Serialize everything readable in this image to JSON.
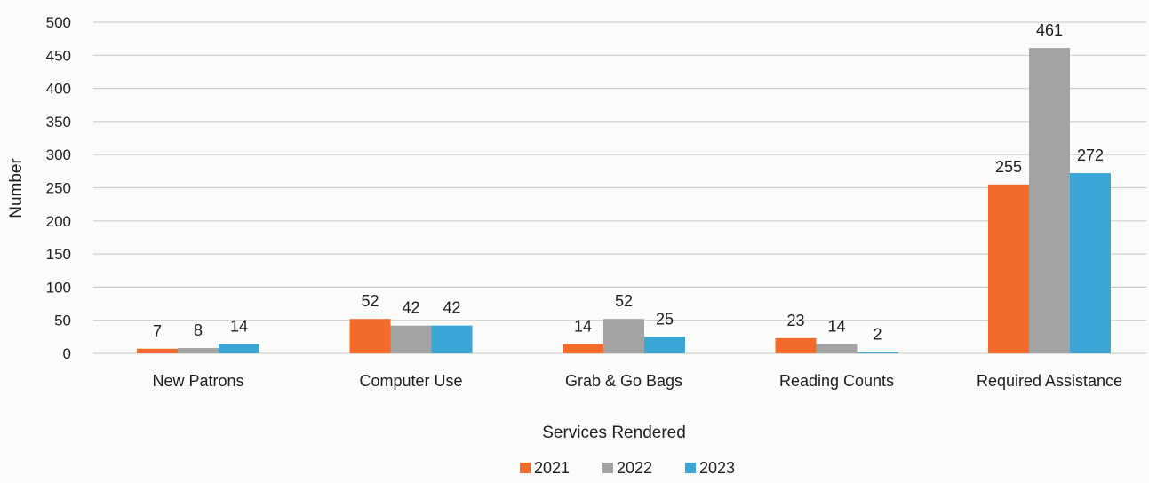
{
  "chart_data": {
    "type": "bar",
    "title": "",
    "xlabel": "Services Rendered",
    "ylabel": "Number",
    "ylim": [
      0,
      500
    ],
    "yticks": [
      0,
      50,
      100,
      150,
      200,
      250,
      300,
      350,
      400,
      450,
      500
    ],
    "categories": [
      "New Patrons",
      "Computer Use",
      "Grab & Go Bags",
      "Reading Counts",
      "Required Assistance"
    ],
    "series": [
      {
        "name": "2021",
        "color": "#f26b2a",
        "values": [
          7,
          52,
          14,
          23,
          255
        ]
      },
      {
        "name": "2022",
        "color": "#a3a3a3",
        "values": [
          8,
          42,
          52,
          14,
          461
        ]
      },
      {
        "name": "2023",
        "color": "#3aa6d6",
        "values": [
          14,
          42,
          25,
          2,
          272
        ]
      }
    ],
    "grid": true,
    "legend": "bottom"
  }
}
